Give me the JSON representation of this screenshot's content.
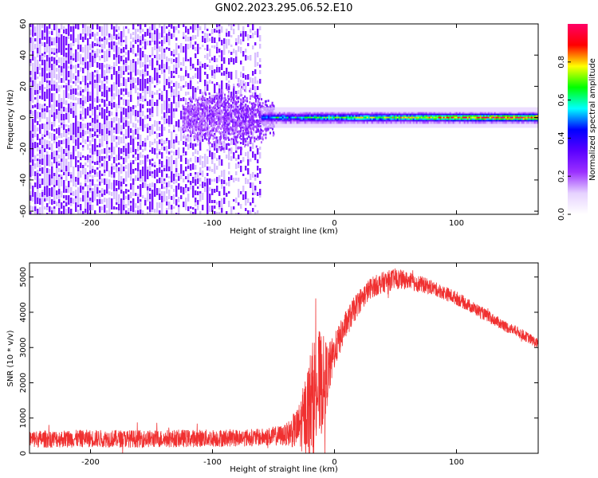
{
  "title": "GN02.2023.295.06.52.E10",
  "chart_data": [
    {
      "type": "heatmap",
      "xlabel": "Height of straight line (km)",
      "ylabel": "Frequency (Hz)",
      "xlim": [
        -250,
        167
      ],
      "ylim": [
        -62,
        60
      ],
      "x_ticks": [
        -200,
        -100,
        0,
        100
      ],
      "y_ticks": [
        -60,
        -40,
        -20,
        0,
        20,
        40,
        60
      ],
      "colorbar": {
        "label": "Normalized spectral amplitude",
        "range": [
          0,
          1
        ],
        "ticks": [
          0.0,
          0.2,
          0.4,
          0.6,
          0.8
        ],
        "colormap": [
          "#ffffff",
          "#e6d2ff",
          "#9b30ff",
          "#5a00ff",
          "#0000ff",
          "#00ffff",
          "#00ff00",
          "#ffff00",
          "#ff0000",
          "#ff0066"
        ]
      },
      "features": {
        "noise_region_x": [
          -250,
          -60
        ],
        "noise_amplitude_range": [
          0.0,
          0.1
        ],
        "transition_cloud_x": [
          -125,
          -50
        ],
        "transition_cloud_freq_halfwidth": 22,
        "carrier_band_x": [
          -60,
          167
        ],
        "carrier_frequency": 0,
        "carrier_halfwidth": 3,
        "carrier_amplitude_range": [
          0.35,
          0.95
        ]
      }
    },
    {
      "type": "line",
      "xlabel": "Height of straight line (km)",
      "ylabel": "SNR (10 * v/v)",
      "xlim": [
        -250,
        167
      ],
      "ylim": [
        0,
        5400
      ],
      "x_ticks": [
        -200,
        -100,
        0,
        100
      ],
      "y_ticks": [
        0,
        1000,
        2000,
        3000,
        4000,
        5000
      ],
      "series": [
        {
          "color": "#f03030",
          "x": [
            -250,
            -200,
            -150,
            -100,
            -60,
            -40,
            -30,
            -25,
            -20,
            -15,
            -10,
            -5,
            0,
            10,
            20,
            30,
            40,
            50,
            60,
            70,
            80,
            90,
            100,
            110,
            120,
            130,
            140,
            150,
            160,
            167
          ],
          "values": [
            400,
            420,
            410,
            430,
            450,
            520,
            700,
            1000,
            1400,
            1800,
            2000,
            2300,
            2900,
            3700,
            4300,
            4700,
            4850,
            4950,
            4900,
            4800,
            4700,
            4550,
            4400,
            4200,
            4000,
            3800,
            3600,
            3450,
            3250,
            3100
          ],
          "noise_amplitude": [
            250,
            250,
            250,
            250,
            250,
            300,
            600,
            1000,
            1500,
            1800,
            1400,
            800,
            500,
            400,
            350,
            300,
            300,
            300,
            250,
            250,
            200,
            200,
            200,
            180,
            180,
            160,
            160,
            150,
            150,
            150
          ]
        }
      ]
    }
  ]
}
